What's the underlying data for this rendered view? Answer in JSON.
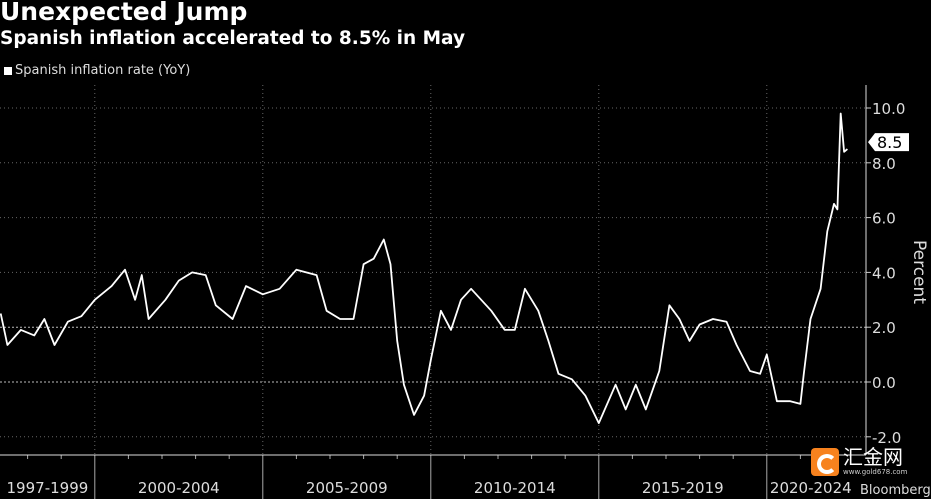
{
  "chart_data": {
    "type": "line",
    "title": "Unexpected Jump",
    "subtitle": "Spanish inflation accelerated to 8.5% in May",
    "legend": [
      "Spanish inflation rate (YoY)"
    ],
    "legend_position": "top-left",
    "ylabel": "Percent",
    "ylim": [
      -2.4,
      11
    ],
    "yticks": [
      "10.0",
      "8.0",
      "6.0",
      "4.0",
      "2.0",
      "0.0",
      "-2.0"
    ],
    "ytick_values": [
      10,
      8,
      6,
      4,
      2,
      0,
      -2
    ],
    "xlim": [
      1997.0,
      2022.8
    ],
    "xtick_labels": [
      "1997-1999",
      "2000-2004",
      "2005-2009",
      "2010-2014",
      "2015-2019",
      "2020-2024"
    ],
    "xtick_groups": [
      [
        1997,
        2000
      ],
      [
        2000,
        2005
      ],
      [
        2005,
        2010
      ],
      [
        2010,
        2015
      ],
      [
        2015,
        2020
      ],
      [
        2020,
        2022.8
      ]
    ],
    "last_value_label": "8.5",
    "series": [
      {
        "name": "Spanish inflation rate (YoY)",
        "color": "#ffffff",
        "points": [
          [
            1997.2,
            2.5
          ],
          [
            1997.4,
            1.35
          ],
          [
            1997.8,
            1.9
          ],
          [
            1998.2,
            1.7
          ],
          [
            1998.5,
            2.3
          ],
          [
            1998.8,
            1.35
          ],
          [
            1999.2,
            2.2
          ],
          [
            1999.6,
            2.4
          ],
          [
            2000.0,
            3.0
          ],
          [
            2000.5,
            3.5
          ],
          [
            2000.9,
            4.1
          ],
          [
            2001.2,
            3.0
          ],
          [
            2001.4,
            3.9
          ],
          [
            2001.6,
            2.3
          ],
          [
            2002.1,
            3.0
          ],
          [
            2002.5,
            3.7
          ],
          [
            2002.9,
            4.0
          ],
          [
            2003.3,
            3.9
          ],
          [
            2003.6,
            2.8
          ],
          [
            2004.1,
            2.3
          ],
          [
            2004.5,
            3.5
          ],
          [
            2005.0,
            3.2
          ],
          [
            2005.5,
            3.4
          ],
          [
            2006.0,
            4.1
          ],
          [
            2006.6,
            3.9
          ],
          [
            2006.9,
            2.6
          ],
          [
            2007.3,
            2.3
          ],
          [
            2007.7,
            2.3
          ],
          [
            2008.0,
            4.3
          ],
          [
            2008.3,
            4.5
          ],
          [
            2008.6,
            5.2
          ],
          [
            2008.8,
            4.3
          ],
          [
            2009.0,
            1.5
          ],
          [
            2009.2,
            -0.1
          ],
          [
            2009.5,
            -1.2
          ],
          [
            2009.8,
            -0.5
          ],
          [
            2010.0,
            0.8
          ],
          [
            2010.3,
            2.6
          ],
          [
            2010.6,
            1.9
          ],
          [
            2010.9,
            3.0
          ],
          [
            2011.2,
            3.4
          ],
          [
            2011.5,
            3.0
          ],
          [
            2011.8,
            2.6
          ],
          [
            2012.2,
            1.9
          ],
          [
            2012.5,
            1.9
          ],
          [
            2012.8,
            3.4
          ],
          [
            2013.2,
            2.6
          ],
          [
            2013.5,
            1.5
          ],
          [
            2013.8,
            0.3
          ],
          [
            2014.2,
            0.1
          ],
          [
            2014.6,
            -0.5
          ],
          [
            2015.0,
            -1.5
          ],
          [
            2015.5,
            -0.1
          ],
          [
            2015.8,
            -1.0
          ],
          [
            2016.1,
            -0.1
          ],
          [
            2016.4,
            -1.0
          ],
          [
            2016.8,
            0.4
          ],
          [
            2017.1,
            2.8
          ],
          [
            2017.4,
            2.3
          ],
          [
            2017.7,
            1.5
          ],
          [
            2018.0,
            2.1
          ],
          [
            2018.4,
            2.3
          ],
          [
            2018.8,
            2.2
          ],
          [
            2019.1,
            1.35
          ],
          [
            2019.5,
            0.4
          ],
          [
            2019.8,
            0.3
          ],
          [
            2020.0,
            1.0
          ],
          [
            2020.3,
            -0.7
          ],
          [
            2020.7,
            -0.7
          ],
          [
            2021.0,
            -0.8
          ],
          [
            2021.1,
            0.3
          ],
          [
            2021.3,
            2.3
          ],
          [
            2021.6,
            3.4
          ],
          [
            2021.8,
            5.5
          ],
          [
            2022.0,
            6.5
          ],
          [
            2022.1,
            6.3
          ],
          [
            2022.2,
            9.8
          ],
          [
            2022.3,
            8.4
          ],
          [
            2022.4,
            8.5
          ]
        ]
      }
    ]
  },
  "watermark": {
    "name": "汇金网",
    "url": "www.gold678.com"
  },
  "source": "Bloomberg"
}
